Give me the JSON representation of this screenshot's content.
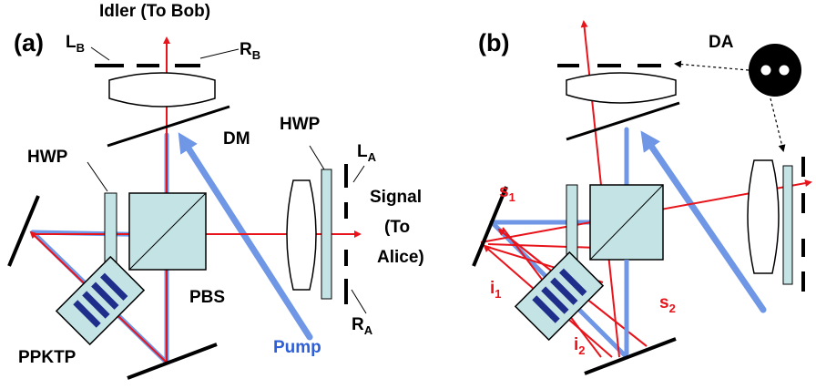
{
  "panel_a": {
    "tag": "(a)",
    "idler_label": "Idler (To Bob)",
    "lb": "L",
    "lb_sub": "B",
    "rb": "R",
    "rb_sub": "B",
    "dm": "DM",
    "hwp_left": "HWP",
    "hwp_right": "HWP",
    "la": "L",
    "la_sub": "A",
    "signal_1": "Signal",
    "signal_2": "(To",
    "signal_3": "Alice)",
    "ra": "R",
    "ra_sub": "A",
    "pbs": "PBS",
    "ppktp": "PPKTP",
    "pump": "Pump"
  },
  "panel_b": {
    "tag": "(b)",
    "da": "DA",
    "s1": "s",
    "s1_sub": "1",
    "s2": "s",
    "s2_sub": "2",
    "i1": "i",
    "i1_sub": "1",
    "i2": "i",
    "i2_sub": "2"
  },
  "colors": {
    "beam_red": "#e8141b",
    "beam_blue": "#6f97e6",
    "optic_fill": "#c3e3e4",
    "label_blue": "#2f5fd8"
  }
}
